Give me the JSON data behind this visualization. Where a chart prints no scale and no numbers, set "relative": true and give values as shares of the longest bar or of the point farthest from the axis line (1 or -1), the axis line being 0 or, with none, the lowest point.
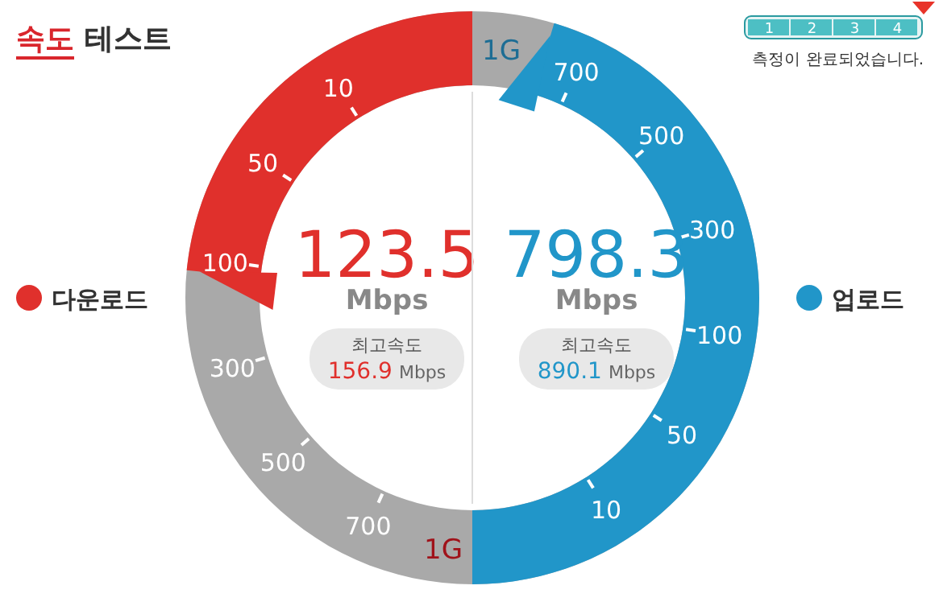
{
  "chart_data": [
    {
      "type": "other",
      "title": "속도 테스트"
    },
    {
      "type": "bar",
      "relative": true,
      "categories": [
        "1",
        "2",
        "3",
        "4"
      ],
      "values": [
        1,
        1,
        1,
        1
      ],
      "annotations": [
        "측정이 완료되었습니다."
      ]
    },
    {
      "type": "other",
      "legend": "left",
      "data_labels": true,
      "series": [
        {
          "name": "다운로드",
          "color": "#e0302c",
          "values": [
            123.5
          ]
        }
      ],
      "annotations": [
        "10",
        "50",
        "100",
        "300",
        "500",
        "700",
        "1G",
        "Mbps",
        "최고속도",
        "156.9",
        "Mbps"
      ]
    },
    {
      "type": "other",
      "legend": "right",
      "data_labels": true,
      "series": [
        {
          "name": "업로드",
          "color": "#2196c9",
          "values": [
            798.3
          ]
        }
      ],
      "annotations": [
        "10",
        "50",
        "100",
        "300",
        "500",
        "700",
        "1G",
        "Mbps",
        "최고속도",
        "890.1",
        "Mbps"
      ]
    }
  ]
}
